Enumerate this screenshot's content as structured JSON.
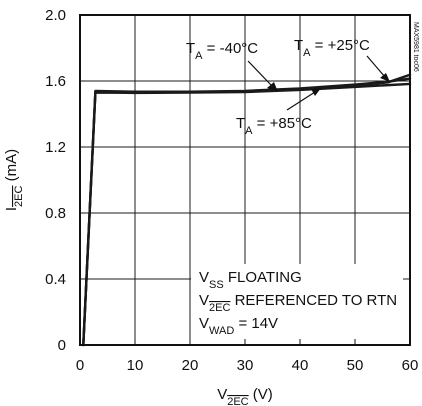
{
  "chart_data": {
    "type": "line",
    "xlabel": {
      "main": "V",
      "sub": "2EC",
      "unit": " (V)"
    },
    "ylabel": {
      "main": "I",
      "sub": "2EC",
      "unit": " (mA)"
    },
    "xlim": [
      0,
      60
    ],
    "ylim": [
      0,
      2.0
    ],
    "x_ticks": [
      0,
      10,
      20,
      30,
      40,
      50,
      60
    ],
    "y_ticks": [
      0,
      0.4,
      0.8,
      1.2,
      1.6,
      2.0
    ],
    "x_tick_labels": [
      "0",
      "10",
      "20",
      "30",
      "40",
      "50",
      "60"
    ],
    "y_tick_labels": [
      "0",
      "0.4",
      "0.8",
      "1.2",
      "1.6",
      "2.0"
    ],
    "grid": true,
    "watermark": "MAX5981 toc06",
    "series": [
      {
        "name": "TA = -40°C",
        "color": "#1a1a1a",
        "points": [
          [
            0.6,
            0
          ],
          [
            2.8,
            1.54
          ],
          [
            10,
            1.535
          ],
          [
            20,
            1.535
          ],
          [
            30,
            1.54
          ],
          [
            40,
            1.555
          ],
          [
            50,
            1.578
          ],
          [
            56,
            1.596
          ],
          [
            60,
            1.615
          ]
        ]
      },
      {
        "name": "TA = +25°C",
        "color": "#1a1a1a",
        "points": [
          [
            0.6,
            0
          ],
          [
            2.8,
            1.535
          ],
          [
            10,
            1.532
          ],
          [
            20,
            1.533
          ],
          [
            30,
            1.536
          ],
          [
            40,
            1.55
          ],
          [
            50,
            1.573
          ],
          [
            56,
            1.592
          ],
          [
            60,
            1.638
          ]
        ]
      },
      {
        "name": "TA = +85°C",
        "color": "#1a1a1a",
        "points": [
          [
            0.6,
            0
          ],
          [
            2.8,
            1.53
          ],
          [
            10,
            1.528
          ],
          [
            20,
            1.53
          ],
          [
            30,
            1.533
          ],
          [
            40,
            1.546
          ],
          [
            50,
            1.564
          ],
          [
            56,
            1.575
          ],
          [
            60,
            1.582
          ]
        ]
      }
    ],
    "annotations": {
      "ta_minus40": {
        "prefix": "T",
        "sub": "A",
        "value": " = -40°C"
      },
      "ta_plus25": {
        "prefix": "T",
        "sub": "A",
        "value": " = +25°C"
      },
      "ta_plus85": {
        "prefix": "T",
        "sub": "A",
        "value": " = +85°C"
      }
    },
    "conditions": {
      "line1": {
        "prefix": "V",
        "sub": "SS",
        "text": " FLOATING"
      },
      "line2": {
        "prefix": "V",
        "sub": "2EC",
        "text": " REFERENCED TO RTN"
      },
      "line3": {
        "prefix": "V",
        "sub": "WAD",
        "text": " = 14V"
      }
    }
  }
}
